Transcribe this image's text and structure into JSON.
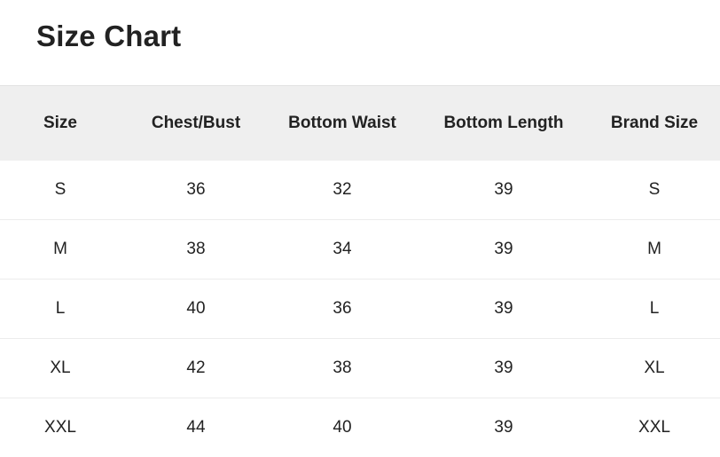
{
  "title": "Size Chart",
  "columns": [
    "Size",
    "Chest/Bust",
    "Bottom Waist",
    "Bottom Length",
    "Brand Size"
  ],
  "rows": [
    [
      "S",
      "36",
      "32",
      "39",
      "S"
    ],
    [
      "M",
      "38",
      "34",
      "39",
      "M"
    ],
    [
      "L",
      "40",
      "36",
      "39",
      "L"
    ],
    [
      "XL",
      "42",
      "38",
      "39",
      "XL"
    ],
    [
      "XXL",
      "44",
      "40",
      "39",
      "XXL"
    ]
  ],
  "colors": {
    "header_bg": "#efefef",
    "text": "#222222",
    "divider": "#ececec"
  }
}
